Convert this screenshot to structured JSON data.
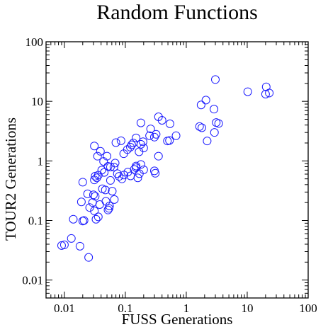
{
  "chart_data": {
    "type": "scatter",
    "title": "Random Functions",
    "xlabel": "FUSS Generations",
    "ylabel": "TOUR2 Generations",
    "xscale": "log",
    "yscale": "log",
    "xlim": [
      0.005,
      100
    ],
    "ylim": [
      0.005,
      100
    ],
    "x_ticks": [
      {
        "value": 0.01,
        "label": "0.01"
      },
      {
        "value": 0.1,
        "label": "0.1"
      },
      {
        "value": 1,
        "label": "1"
      },
      {
        "value": 10,
        "label": "10"
      },
      {
        "value": 100,
        "label": "100"
      }
    ],
    "y_ticks": [
      {
        "value": 0.01,
        "label": "0.01"
      },
      {
        "value": 0.1,
        "label": "0.1"
      },
      {
        "value": 1,
        "label": "1"
      },
      {
        "value": 10,
        "label": "10"
      },
      {
        "value": 100,
        "label": "100"
      }
    ],
    "grid": false,
    "marker": "open-circle",
    "marker_color": "#1a1aff",
    "series": [
      {
        "points": [
          [
            0.009,
            0.038
          ],
          [
            0.01,
            0.039
          ],
          [
            0.013,
            0.05
          ],
          [
            0.018,
            0.037
          ],
          [
            0.025,
            0.024
          ],
          [
            0.014,
            0.105
          ],
          [
            0.02,
            0.098
          ],
          [
            0.021,
            0.1
          ],
          [
            0.019,
            0.205
          ],
          [
            0.024,
            0.28
          ],
          [
            0.026,
            0.165
          ],
          [
            0.029,
            0.2
          ],
          [
            0.031,
            0.145
          ],
          [
            0.033,
            0.105
          ],
          [
            0.03,
            0.27
          ],
          [
            0.036,
            0.115
          ],
          [
            0.038,
            0.185
          ],
          [
            0.032,
            0.255
          ],
          [
            0.042,
            0.34
          ],
          [
            0.047,
            0.325
          ],
          [
            0.048,
            0.21
          ],
          [
            0.052,
            0.15
          ],
          [
            0.054,
            0.16
          ],
          [
            0.055,
            0.175
          ],
          [
            0.066,
            0.225
          ],
          [
            0.061,
            0.31
          ],
          [
            0.031,
            0.48
          ],
          [
            0.032,
            0.555
          ],
          [
            0.036,
            0.575
          ],
          [
            0.034,
            0.52
          ],
          [
            0.041,
            0.7
          ],
          [
            0.045,
            0.64
          ],
          [
            0.052,
            0.81
          ],
          [
            0.057,
            0.47
          ],
          [
            0.065,
            0.79
          ],
          [
            0.074,
            0.61
          ],
          [
            0.079,
            0.55
          ],
          [
            0.088,
            0.5
          ],
          [
            0.095,
            0.58
          ],
          [
            0.11,
            0.65
          ],
          [
            0.122,
            0.56
          ],
          [
            0.14,
            0.72
          ],
          [
            0.15,
            0.82
          ],
          [
            0.15,
            0.77
          ],
          [
            0.16,
            0.52
          ],
          [
            0.17,
            0.61
          ],
          [
            0.18,
            0.87
          ],
          [
            0.2,
            0.71
          ],
          [
            0.02,
            0.44
          ],
          [
            0.031,
            1.78
          ],
          [
            0.035,
            1.2
          ],
          [
            0.039,
            1.45
          ],
          [
            0.044,
            0.98
          ],
          [
            0.05,
            1.2
          ],
          [
            0.057,
            0.79
          ],
          [
            0.068,
            0.92
          ],
          [
            0.07,
            2.03
          ],
          [
            0.085,
            2.18
          ],
          [
            0.094,
            1.32
          ],
          [
            0.108,
            1.55
          ],
          [
            0.121,
            1.7
          ],
          [
            0.127,
            1.86
          ],
          [
            0.135,
            2.0
          ],
          [
            0.15,
            2.43
          ],
          [
            0.168,
            1.42
          ],
          [
            0.18,
            1.9
          ],
          [
            0.195,
            2.1
          ],
          [
            0.2,
            1.65
          ],
          [
            0.25,
            2.65
          ],
          [
            0.26,
            3.45
          ],
          [
            0.3,
            2.51
          ],
          [
            0.32,
            2.8
          ],
          [
            0.3,
            0.68
          ],
          [
            0.31,
            0.62
          ],
          [
            0.35,
            1.2
          ],
          [
            0.4,
            4.8
          ],
          [
            0.35,
            5.5
          ],
          [
            0.18,
            4.35
          ],
          [
            0.49,
            2.16
          ],
          [
            0.53,
            2.2
          ],
          [
            0.54,
            4.2
          ],
          [
            0.68,
            2.65
          ],
          [
            1.65,
            3.78
          ],
          [
            1.8,
            3.6
          ],
          [
            2.2,
            2.16
          ],
          [
            2.9,
            3.0
          ],
          [
            3.1,
            4.4
          ],
          [
            3.4,
            4.25
          ],
          [
            1.75,
            8.7
          ],
          [
            2.1,
            10.5
          ],
          [
            2.85,
            7.4
          ],
          [
            3.0,
            23.2
          ],
          [
            10.2,
            14.5
          ],
          [
            20.0,
            13.2
          ],
          [
            20.5,
            17.5
          ],
          [
            23.0,
            13.8
          ]
        ]
      }
    ]
  }
}
